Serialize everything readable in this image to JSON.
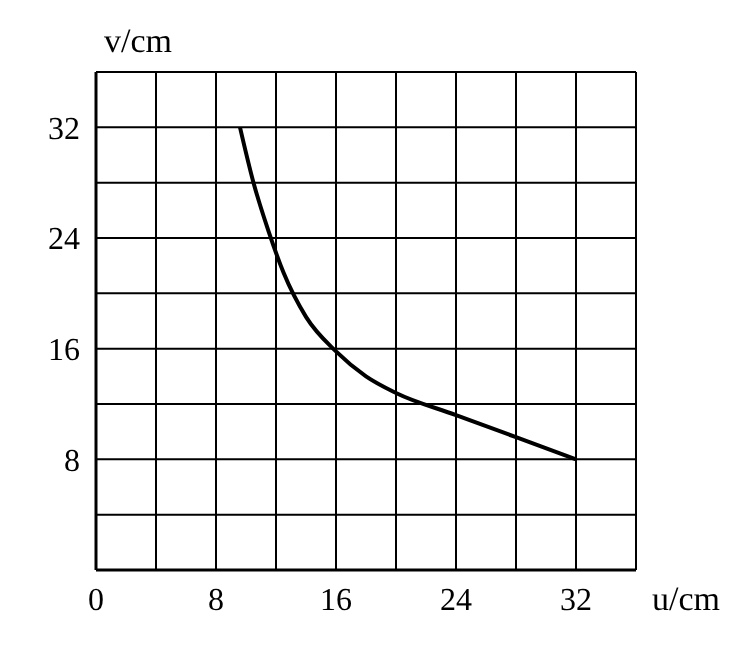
{
  "chart_data": {
    "type": "line",
    "xlabel": "u/cm",
    "ylabel": "v/cm",
    "x": [
      9.6,
      10.5,
      11.5,
      12.5,
      14,
      16,
      18,
      20,
      24,
      28,
      32
    ],
    "series": [
      {
        "color": "#000000",
        "values": [
          32,
          28,
          24.5,
          21.5,
          18.3,
          15.8,
          14,
          12.8,
          11.2,
          9.6,
          8
        ]
      }
    ],
    "xlim": [
      0,
      36
    ],
    "ylim": [
      0,
      36
    ],
    "xticks": [
      0,
      {
        "value": 4,
        "label": null
      },
      8,
      {
        "value": 12,
        "label": null
      },
      16,
      {
        "value": 20,
        "label": null
      },
      24,
      {
        "value": 28,
        "label": null
      },
      32,
      {
        "value": 36,
        "label": null
      }
    ],
    "yticks": [
      {
        "value": 0,
        "label": null
      },
      {
        "value": 4,
        "label": null
      },
      8,
      {
        "value": 12,
        "label": null
      },
      16,
      {
        "value": 20,
        "label": null
      },
      24,
      {
        "value": 28,
        "label": null
      },
      32,
      {
        "value": 36,
        "label": null
      }
    ],
    "grid": true,
    "marker": "none",
    "line_style": "solid"
  }
}
